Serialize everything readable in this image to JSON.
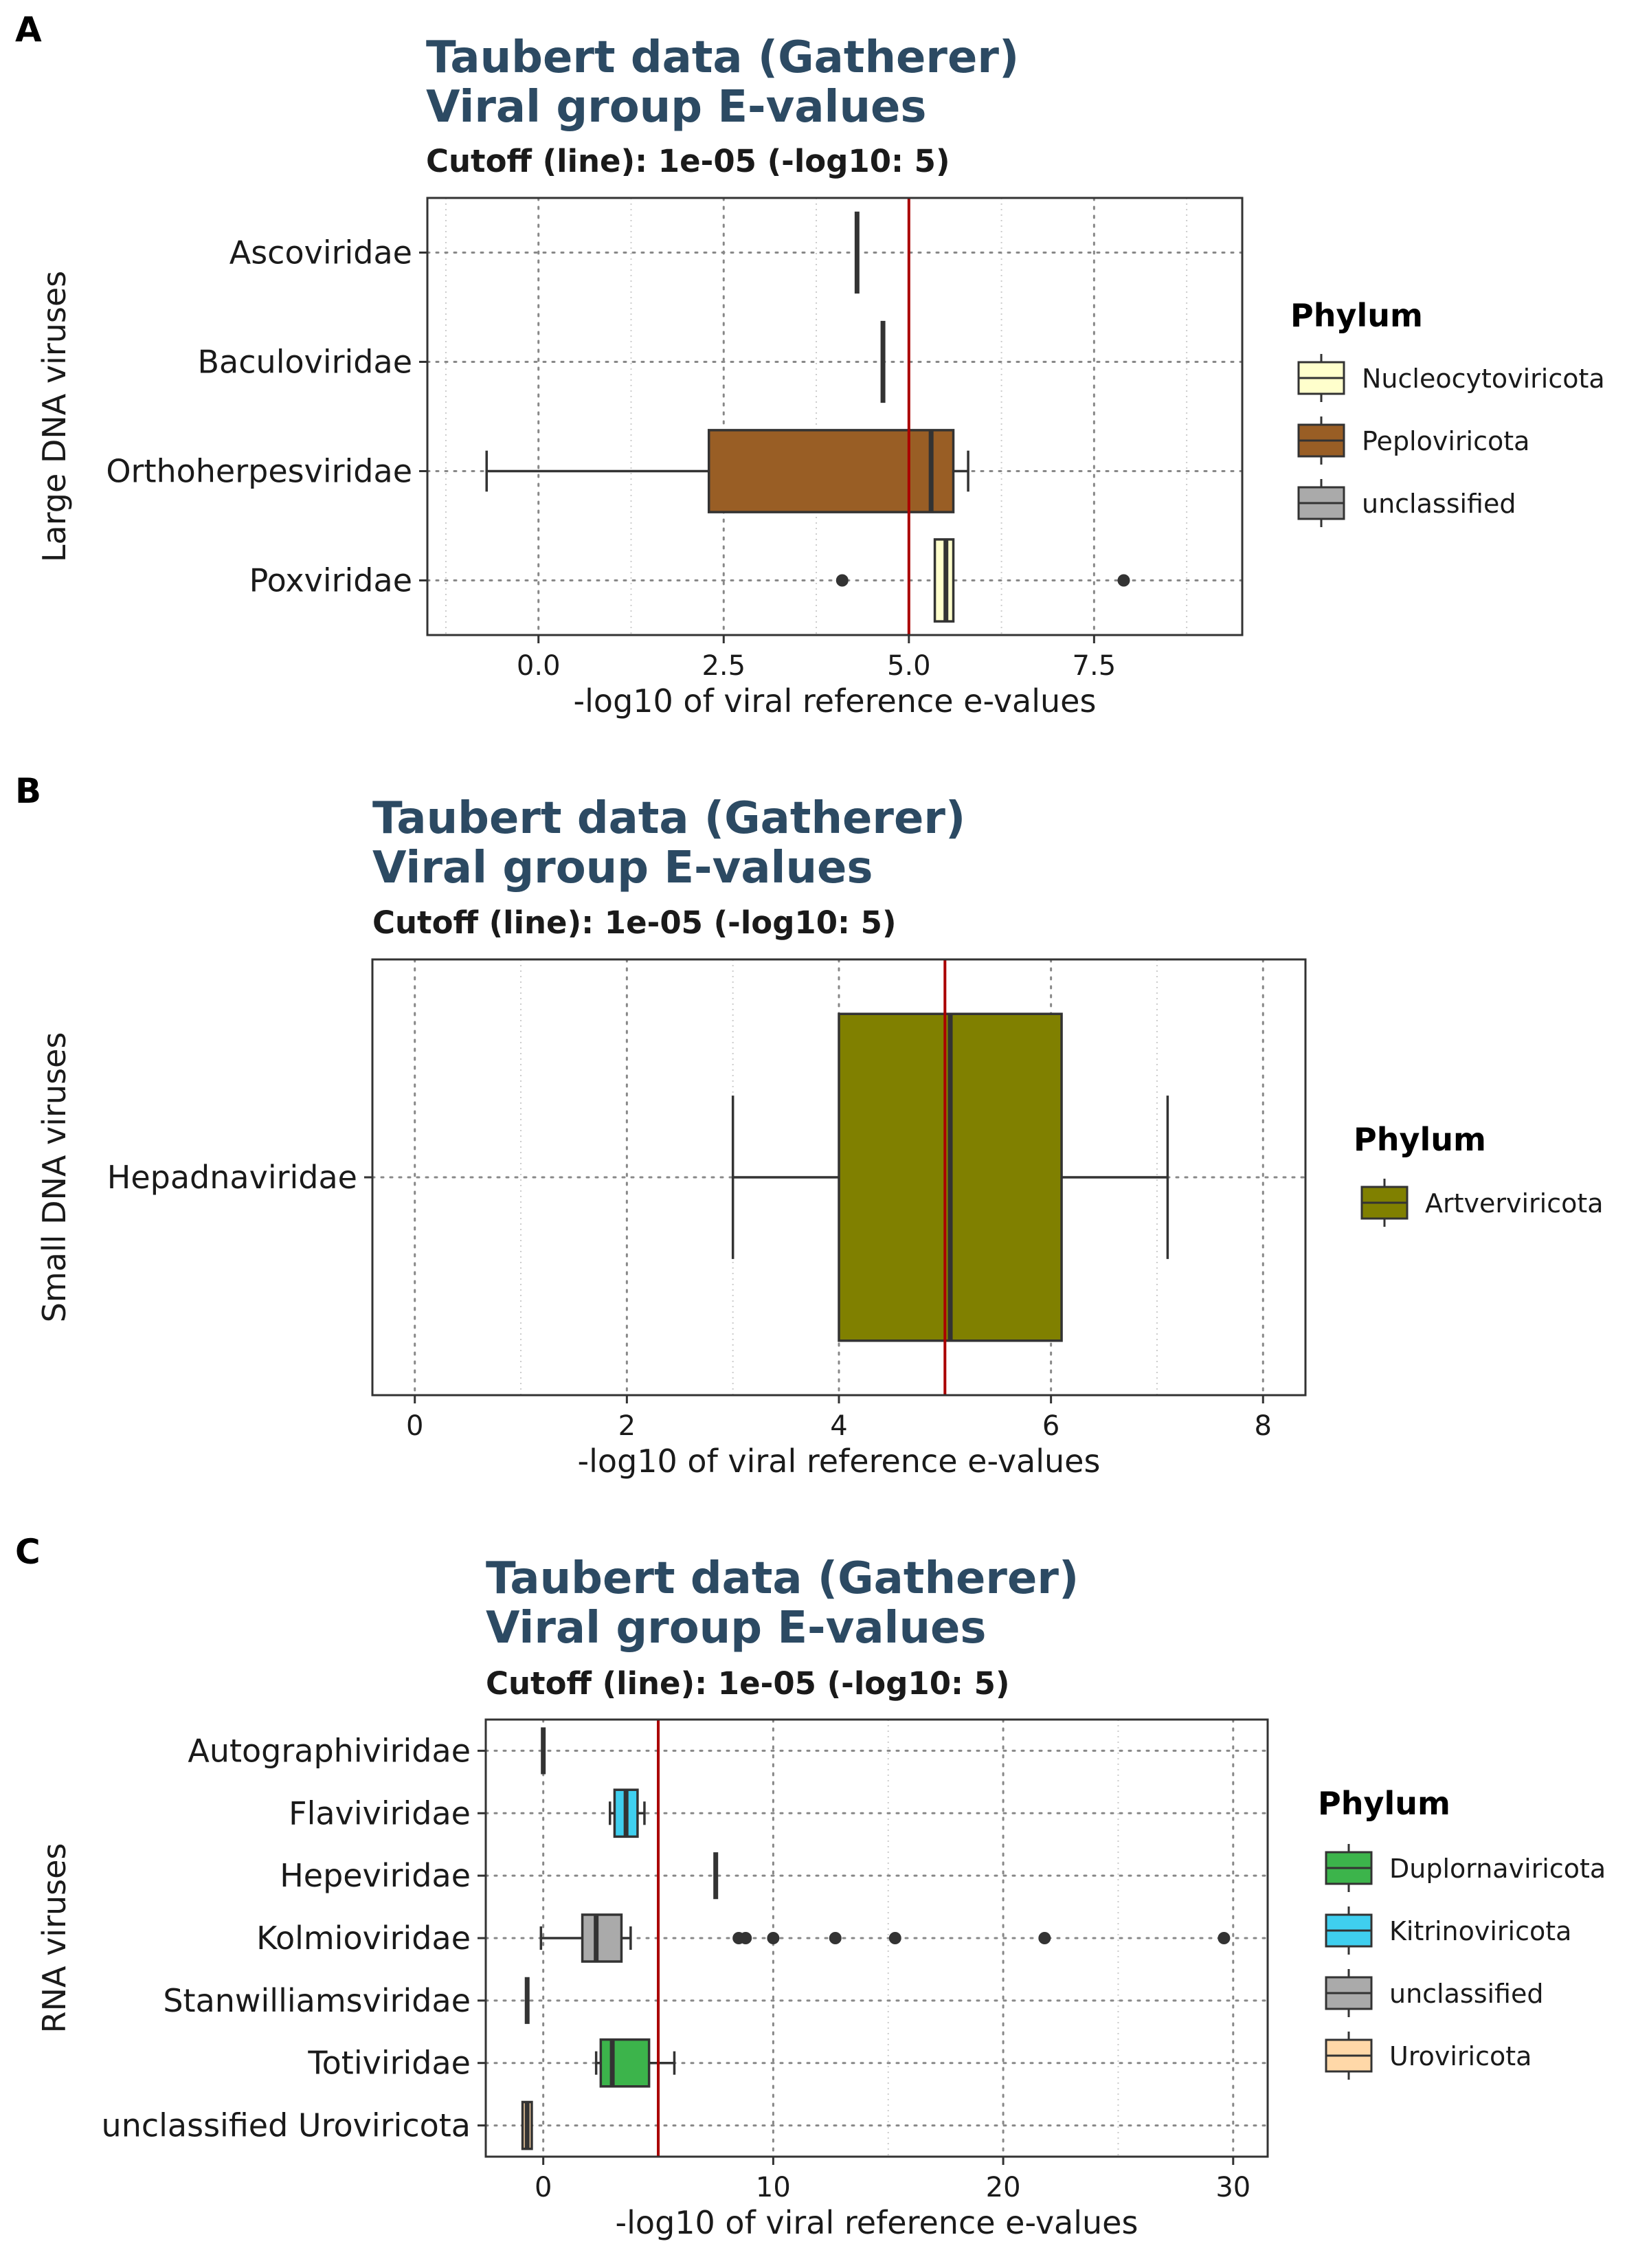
{
  "colors": {
    "cutoff_line": "#aa0000",
    "title": "#2c4a63",
    "box_stroke": "#333333",
    "grid": "#888888"
  },
  "chart_data": [
    {
      "panel": "A",
      "type": "box",
      "title": "Taubert data (Gatherer)",
      "title_line2": "Viral group E-values",
      "subtitle": "Cutoff (line): 1e-05 (-log10: 5)",
      "xlabel": "-log10 of viral reference e-values",
      "ylabel": "Large DNA viruses",
      "xlim": [
        -1.5,
        9.5
      ],
      "xticks": [
        0,
        2.5,
        5,
        7.5
      ],
      "xtick_labels": [
        "0.0",
        "2.5",
        "5.0",
        "7.5"
      ],
      "cutoff": 5,
      "legend_title": "Phylum",
      "legend": [
        {
          "name": "Nucleocytoviricota",
          "color": "#ffffcc"
        },
        {
          "name": "Peploviricota",
          "color": "#995e25"
        },
        {
          "name": "unclassified",
          "color": "#aaaaaa"
        }
      ],
      "categories": [
        "Ascoviridae",
        "Baculoviridae",
        "Orthoherpesviridae",
        "Poxviridae"
      ],
      "boxes": [
        {
          "category": "Ascoviridae",
          "color": "#aaaaaa",
          "whisker_low": 4.3,
          "q1": 4.3,
          "median": 4.3,
          "q3": 4.3,
          "whisker_high": 4.3,
          "outliers": []
        },
        {
          "category": "Baculoviridae",
          "color": "#aaaaaa",
          "whisker_low": 4.65,
          "q1": 4.65,
          "median": 4.65,
          "q3": 4.65,
          "whisker_high": 4.65,
          "outliers": []
        },
        {
          "category": "Orthoherpesviridae",
          "color": "#995e25",
          "whisker_low": -0.7,
          "q1": 2.3,
          "median": 5.3,
          "q3": 5.6,
          "whisker_high": 5.8,
          "outliers": []
        },
        {
          "category": "Poxviridae",
          "color": "#ffffcc",
          "whisker_low": 5.35,
          "q1": 5.35,
          "median": 5.5,
          "q3": 5.6,
          "whisker_high": 5.6,
          "outliers": [
            4.1,
            7.9
          ]
        }
      ]
    },
    {
      "panel": "B",
      "type": "box",
      "title": "Taubert data (Gatherer)",
      "title_line2": "Viral group E-values",
      "subtitle": "Cutoff (line): 1e-05 (-log10: 5)",
      "xlabel": "-log10 of viral reference e-values",
      "ylabel": "Small DNA viruses",
      "xlim": [
        -0.4,
        8.4
      ],
      "xticks": [
        0,
        2,
        4,
        6,
        8
      ],
      "xtick_labels": [
        "0",
        "2",
        "4",
        "6",
        "8"
      ],
      "cutoff": 5,
      "legend_title": "Phylum",
      "legend": [
        {
          "name": "Artverviricota",
          "color": "#808000"
        }
      ],
      "categories": [
        "Hepadnaviridae"
      ],
      "boxes": [
        {
          "category": "Hepadnaviridae",
          "color": "#808000",
          "whisker_low": 3.0,
          "q1": 4.0,
          "median": 5.05,
          "q3": 6.1,
          "whisker_high": 7.1,
          "outliers": []
        }
      ]
    },
    {
      "panel": "C",
      "type": "box",
      "title": "Taubert data (Gatherer)",
      "title_line2": "Viral group E-values",
      "subtitle": "Cutoff (line): 1e-05 (-log10: 5)",
      "xlabel": "-log10 of viral reference e-values",
      "ylabel": "RNA viruses",
      "xlim": [
        -2.5,
        31.5
      ],
      "xticks": [
        0,
        10,
        20,
        30
      ],
      "xtick_labels": [
        "0",
        "10",
        "20",
        "30"
      ],
      "cutoff": 5,
      "legend_title": "Phylum",
      "legend": [
        {
          "name": "Duplornaviricota",
          "color": "#3cb44b"
        },
        {
          "name": "Kitrinoviricota",
          "color": "#3fcfef"
        },
        {
          "name": "unclassified",
          "color": "#aaaaaa"
        },
        {
          "name": "Uroviricota",
          "color": "#ffd8a8"
        }
      ],
      "categories": [
        "Autographiviridae",
        "Flaviviridae",
        "Hepeviridae",
        "Kolmioviridae",
        "Stanwilliamsviridae",
        "Totiviridae",
        "unclassified Uroviricota"
      ],
      "boxes": [
        {
          "category": "Autographiviridae",
          "color": "#ffd8a8",
          "whisker_low": 0.0,
          "q1": 0.0,
          "median": 0.0,
          "q3": 0.0,
          "whisker_high": 0.0,
          "outliers": []
        },
        {
          "category": "Flaviviridae",
          "color": "#3fcfef",
          "whisker_low": 2.9,
          "q1": 3.1,
          "median": 3.6,
          "q3": 4.1,
          "whisker_high": 4.4,
          "outliers": []
        },
        {
          "category": "Hepeviridae",
          "color": "#aaaaaa",
          "whisker_low": 7.5,
          "q1": 7.5,
          "median": 7.5,
          "q3": 7.5,
          "whisker_high": 7.5,
          "outliers": []
        },
        {
          "category": "Kolmioviridae",
          "color": "#aaaaaa",
          "whisker_low": -0.1,
          "q1": 1.7,
          "median": 2.3,
          "q3": 3.4,
          "whisker_high": 3.8,
          "outliers": [
            8.5,
            8.8,
            10.0,
            12.7,
            15.3,
            21.8,
            29.6
          ]
        },
        {
          "category": "Stanwilliamsviridae",
          "color": "#ffd8a8",
          "whisker_low": -0.7,
          "q1": -0.7,
          "median": -0.7,
          "q3": -0.7,
          "whisker_high": -0.7,
          "outliers": []
        },
        {
          "category": "Totiviridae",
          "color": "#3cb44b",
          "whisker_low": 2.3,
          "q1": 2.5,
          "median": 3.0,
          "q3": 4.6,
          "whisker_high": 5.7,
          "outliers": []
        },
        {
          "category": "unclassified Uroviricota",
          "color": "#ffd8a8",
          "whisker_low": -0.9,
          "q1": -0.9,
          "median": -0.7,
          "q3": -0.5,
          "whisker_high": -0.5,
          "outliers": []
        }
      ]
    }
  ]
}
